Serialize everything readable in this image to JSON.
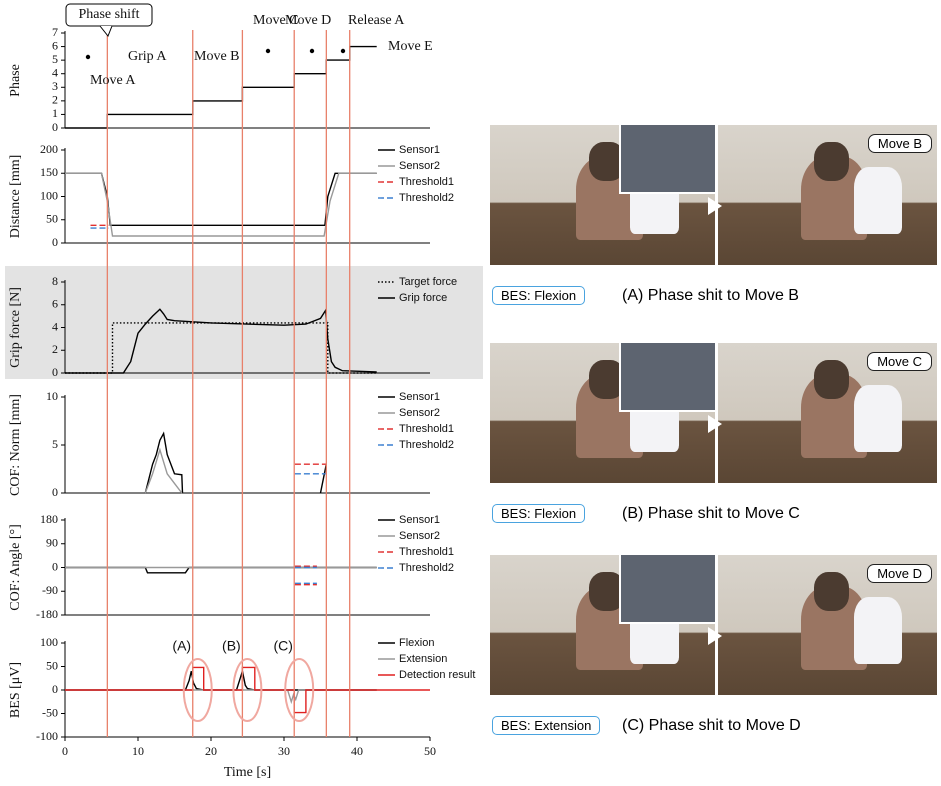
{
  "chart_data": [
    {
      "type": "line",
      "ylabel": "Phase",
      "xlim": [
        0,
        50
      ],
      "ylim": [
        0,
        7
      ],
      "yticks": [
        0,
        1,
        2,
        3,
        4,
        5,
        6,
        7
      ],
      "annotations": [
        "Phase shift",
        "Move A",
        "Grip A",
        "Move B",
        "Move C",
        "Move D",
        "Release A",
        "Move E"
      ],
      "series": [
        {
          "name": "Phase",
          "color": "#000000",
          "dash": "solid",
          "x": [
            0,
            5.8,
            5.8,
            17.5,
            17.5,
            24.3,
            24.3,
            31.4,
            31.4,
            35.8,
            35.8,
            39,
            39,
            42.7
          ],
          "values": [
            0,
            0,
            1,
            1,
            2,
            2,
            3,
            3,
            4,
            4,
            5,
            5,
            6,
            6
          ]
        }
      ]
    },
    {
      "type": "line",
      "ylabel": "Distance [mm]",
      "xlim": [
        0,
        50
      ],
      "ylim": [
        0,
        200
      ],
      "yticks": [
        0,
        50,
        100,
        150,
        200
      ],
      "legend": "right",
      "series": [
        {
          "name": "Sensor1",
          "color": "#000000",
          "dash": "solid",
          "x": [
            0,
            5,
            5.8,
            6.2,
            35.6,
            36,
            37,
            42.7
          ],
          "values": [
            150,
            150,
            100,
            38,
            38,
            100,
            150,
            150
          ]
        },
        {
          "name": "Sensor2",
          "color": "#999999",
          "dash": "solid",
          "x": [
            0,
            5,
            5.8,
            6.5,
            35.5,
            36.3,
            37.5,
            42.7
          ],
          "values": [
            150,
            150,
            90,
            15,
            15,
            90,
            150,
            150
          ]
        },
        {
          "name": "Threshold1",
          "color": "#e03030",
          "dash": "dashed",
          "x": [
            3.5,
            6
          ],
          "values": [
            38,
            38
          ]
        },
        {
          "name": "Threshold2",
          "color": "#3a7fd0",
          "dash": "dashed",
          "x": [
            3.5,
            6
          ],
          "values": [
            32,
            32
          ]
        }
      ]
    },
    {
      "type": "line",
      "ylabel": "Grip force [N]",
      "xlim": [
        0,
        50
      ],
      "ylim": [
        0,
        8
      ],
      "yticks": [
        0,
        2,
        4,
        6,
        8
      ],
      "legend": "right",
      "background": "#e3e3e3",
      "series": [
        {
          "name": "Target force",
          "color": "#000000",
          "dash": "dotted",
          "x": [
            0,
            6.5,
            6.5,
            36,
            36,
            42.7
          ],
          "values": [
            0,
            0,
            4.4,
            4.4,
            0,
            0
          ]
        },
        {
          "name": "Grip force",
          "color": "#000000",
          "dash": "solid",
          "x": [
            0,
            8,
            9,
            10,
            11,
            12,
            13,
            13.5,
            14,
            15,
            20,
            25,
            30,
            33,
            35,
            35.7,
            36,
            36.5,
            37,
            38,
            42.7
          ],
          "values": [
            0,
            0,
            1,
            3.5,
            4.3,
            5,
            5.6,
            5.2,
            4.7,
            4.6,
            4.4,
            4.3,
            4.2,
            4.3,
            4.8,
            5.5,
            3,
            1,
            0.5,
            0.2,
            0.1
          ]
        }
      ]
    },
    {
      "type": "line",
      "ylabel": "COF: Norm [mm]",
      "xlim": [
        0,
        50
      ],
      "ylim": [
        0,
        10
      ],
      "yticks": [
        0,
        5,
        10
      ],
      "legend": "right",
      "series": [
        {
          "name": "Sensor1",
          "color": "#000000",
          "dash": "solid",
          "x": [
            11,
            12,
            12.5,
            13,
            13.5,
            14,
            15,
            16,
            16.1,
            null,
            35,
            35.8
          ],
          "values": [
            0,
            3,
            4,
            5.5,
            6.2,
            4,
            2,
            1.9,
            0,
            null,
            0,
            3
          ]
        },
        {
          "name": "Sensor2",
          "color": "#999999",
          "dash": "solid",
          "x": [
            11,
            12,
            13,
            14,
            15,
            16
          ],
          "values": [
            0,
            2,
            4.5,
            2,
            1,
            0
          ]
        },
        {
          "name": "Threshold1",
          "color": "#e03030",
          "dash": "dashed",
          "x": [
            31.5,
            35.8
          ],
          "values": [
            3,
            3
          ]
        },
        {
          "name": "Threshold2",
          "color": "#3a7fd0",
          "dash": "dashed",
          "x": [
            31.5,
            35.8
          ],
          "values": [
            2,
            2
          ]
        }
      ]
    },
    {
      "type": "line",
      "ylabel": "COF: Angle [°]",
      "xlim": [
        0,
        50
      ],
      "ylim": [
        -180,
        180
      ],
      "yticks": [
        -180,
        -90,
        0,
        90,
        180
      ],
      "legend": "right",
      "series": [
        {
          "name": "Sensor1",
          "color": "#000000",
          "dash": "solid",
          "x": [
            0,
            11,
            11.3,
            16.5,
            17,
            42.7
          ],
          "values": [
            0,
            0,
            -20,
            -20,
            0,
            0
          ]
        },
        {
          "name": "Sensor2",
          "color": "#999999",
          "dash": "solid",
          "x": [
            0,
            42.7
          ],
          "values": [
            0,
            0
          ]
        },
        {
          "name": "Threshold1",
          "color": "#e03030",
          "dash": "dashed",
          "x": [
            31.5,
            34.5,
            null,
            31.5,
            34.5
          ],
          "values": [
            5,
            5,
            null,
            -65,
            -65
          ]
        },
        {
          "name": "Threshold2",
          "color": "#3a7fd0",
          "dash": "dashed",
          "x": [
            31.5,
            34.5,
            null,
            31.5,
            34.5
          ],
          "values": [
            0,
            0,
            null,
            -60,
            -60
          ]
        }
      ]
    },
    {
      "type": "line",
      "ylabel": "BES [μV]",
      "xlabel": "Time [s]",
      "xlim": [
        0,
        50
      ],
      "xticks": [
        0,
        10,
        20,
        30,
        40,
        50
      ],
      "ylim": [
        -100,
        100
      ],
      "yticks": [
        -100,
        -50,
        0,
        50,
        100
      ],
      "legend": "right",
      "annotations": [
        "(A)",
        "(B)",
        "(C)"
      ],
      "series": [
        {
          "name": "Flexion",
          "color": "#000000",
          "dash": "solid",
          "x": [
            0,
            16.5,
            17,
            17.3,
            17.6,
            18,
            19,
            23.5,
            24,
            24.3,
            24.7,
            25,
            26,
            42.7
          ],
          "values": [
            0,
            0,
            20,
            40,
            15,
            3,
            0,
            0,
            25,
            40,
            10,
            3,
            0,
            0
          ]
        },
        {
          "name": "Extension",
          "color": "#999999",
          "dash": "solid",
          "x": [
            0,
            30.5,
            31,
            31.3,
            31.6,
            32,
            42.7
          ],
          "values": [
            0,
            0,
            -25,
            -10,
            -20,
            0,
            0
          ]
        },
        {
          "name": "Detection result",
          "color": "#e02020",
          "dash": "solid",
          "x": [
            0,
            17.5,
            17.5,
            19,
            19,
            24.3,
            24.3,
            26,
            26,
            31.4,
            31.4,
            33,
            33,
            50
          ],
          "values": [
            0,
            0,
            48,
            48,
            0,
            0,
            48,
            48,
            0,
            0,
            -48,
            -48,
            0,
            0
          ]
        }
      ]
    }
  ],
  "phase_shift_lines": {
    "color": "#e8806a",
    "x": [
      5.8,
      17.5,
      24.3,
      31.4,
      35.8,
      39
    ]
  },
  "photos": [
    {
      "signal": "BES: Flexion",
      "move": "Move B",
      "caption": "(A) Phase shit to Move B"
    },
    {
      "signal": "BES: Flexion",
      "move": "Move C",
      "caption": "(B) Phase shit to Move C"
    },
    {
      "signal": "BES: Extension",
      "move": "Move D",
      "caption": "(C) Phase shit to Move D"
    }
  ]
}
